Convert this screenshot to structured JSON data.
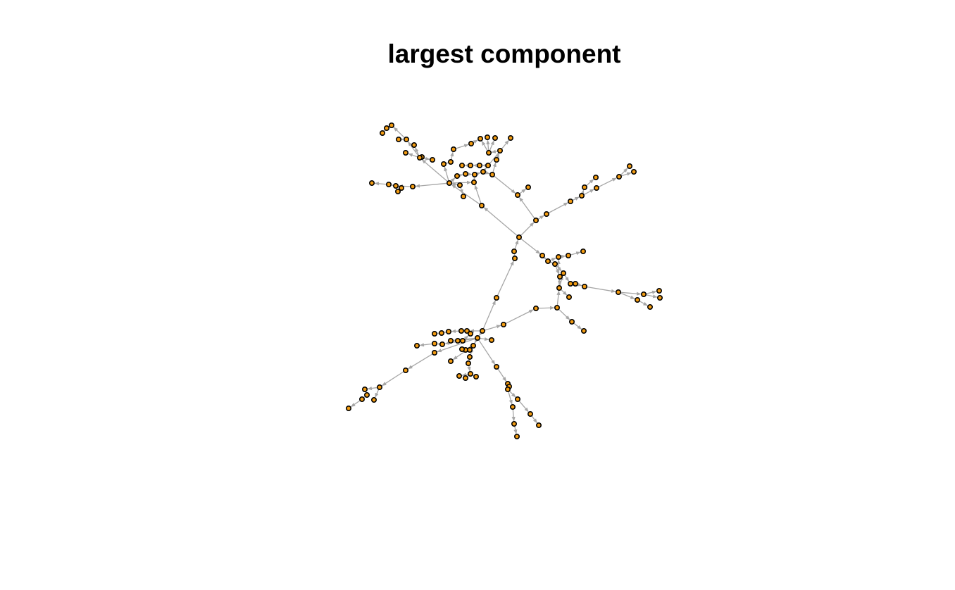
{
  "title": "largest component",
  "colors": {
    "node_fill": "#f39c12",
    "node_stroke": "#000000",
    "edge": "#a6a6a6",
    "background": "#ffffff"
  },
  "graph": {
    "type": "directed-network",
    "arrowheads": true
  }
}
